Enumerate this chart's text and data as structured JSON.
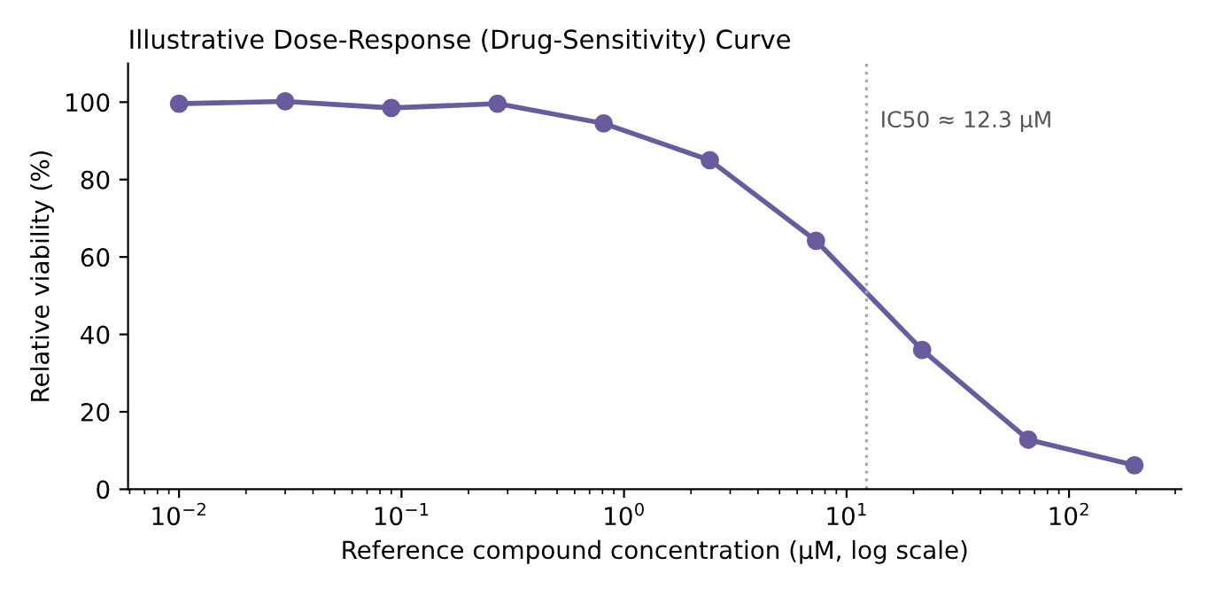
{
  "chart_data": {
    "type": "line",
    "title": "Illustrative Dose-Response (Drug-Sensitivity) Curve",
    "xlabel": "Reference compound concentration (µM, log scale)",
    "ylabel": "Relative viability (%)",
    "x": [
      0.01,
      0.03,
      0.09,
      0.27,
      0.81,
      2.43,
      7.29,
      21.87,
      65.61,
      196.83
    ],
    "series": [
      {
        "color": "#6a5a9e",
        "values": [
          99.6,
          100.2,
          98.5,
          99.6,
          94.5,
          85,
          64.2,
          36,
          12.8,
          6.2
        ]
      }
    ],
    "log": "x",
    "xlim": [
      0.0059,
      320
    ],
    "ylim": [
      0,
      110
    ],
    "xticks": [
      {
        "value": 0.01,
        "label": "10$^{−2}$"
      },
      {
        "value": 0.1,
        "label": "10$^{−1}$"
      },
      {
        "value": 1,
        "label": "10$^{0}$"
      },
      {
        "value": 10,
        "label": "10$^{1}$"
      },
      {
        "value": 100,
        "label": "10$^{2}$"
      }
    ],
    "yticks": [
      0,
      20,
      40,
      60,
      80,
      100
    ],
    "ref_lines": [
      {
        "axis": "x",
        "value": 12.3,
        "label": "IC50 ≈ 12.3 µM",
        "color": "#aaaaaa",
        "line_style": "dotted"
      }
    ],
    "marker": "circle",
    "line_style": "solid",
    "grid": false,
    "legend": false
  }
}
